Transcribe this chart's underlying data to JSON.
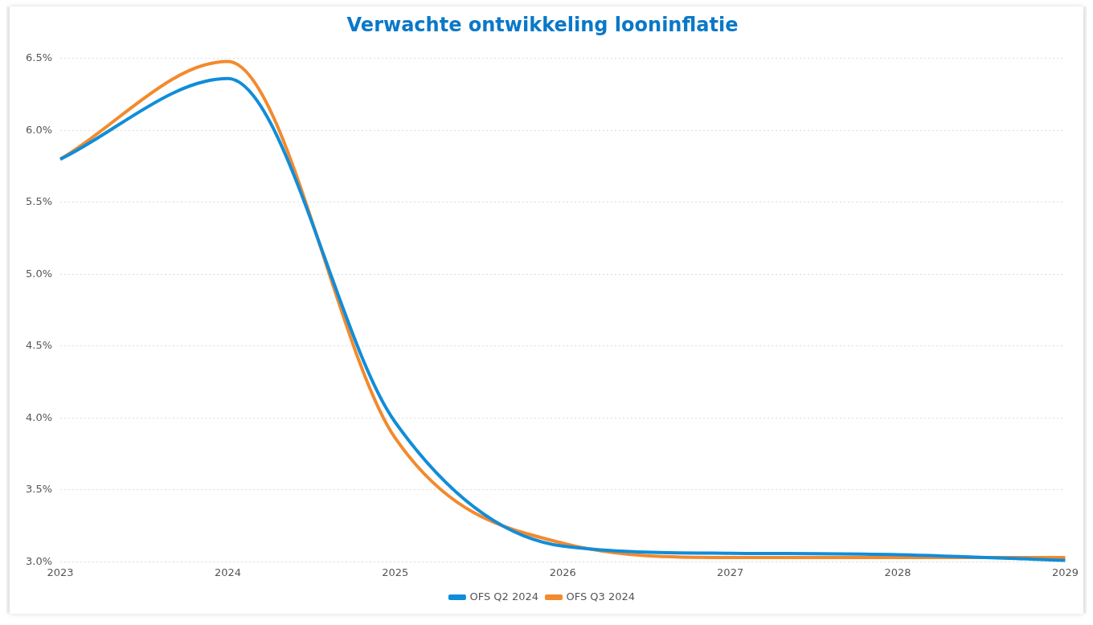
{
  "chart_data": {
    "type": "line",
    "title": "Verwachte ontwikkeling looninflatie",
    "categories": [
      "2023",
      "2024",
      "2025",
      "2026",
      "2027",
      "2028",
      "2029"
    ],
    "series": [
      {
        "name": "OFS Q2 2024",
        "color": "#118dd8",
        "values": [
          5.8,
          6.36,
          3.97,
          3.11,
          3.06,
          3.05,
          3.01
        ]
      },
      {
        "name": "OFS Q3 2024",
        "color": "#f28a2e",
        "values": [
          5.8,
          6.48,
          3.86,
          3.13,
          3.03,
          3.03,
          3.03
        ]
      }
    ],
    "ylim": [
      3,
      6.5
    ],
    "yticks": [
      {
        "value": 3,
        "label": "3.0%"
      },
      {
        "value": 3.5,
        "label": "3.5%"
      },
      {
        "value": 4,
        "label": "4.0%"
      },
      {
        "value": 4.5,
        "label": "4.5%"
      },
      {
        "value": 5,
        "label": "5.0%"
      },
      {
        "value": 5.5,
        "label": "5.5%"
      },
      {
        "value": 6,
        "label": "6.0%"
      },
      {
        "value": 6.5,
        "label": "6.5%"
      }
    ],
    "grid": "y",
    "legend": "bottom",
    "marker": "none",
    "line_style": "solid"
  }
}
